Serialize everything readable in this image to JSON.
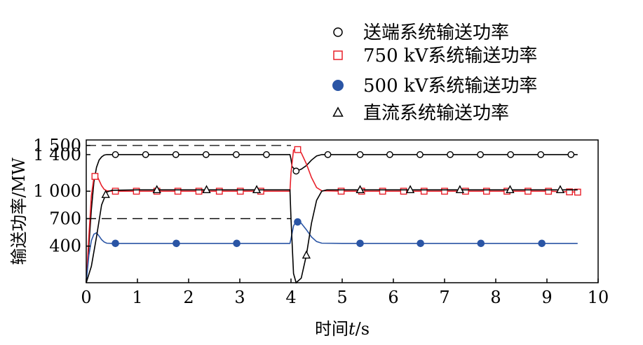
{
  "chart_data": {
    "type": "line",
    "title": "",
    "xlabel": "时间",
    "xlabel_italic": "t",
    "xlabel_unit": "/s",
    "ylabel": "输送功率/MW",
    "xlim": [
      0,
      10
    ],
    "ylim": [
      0,
      1560
    ],
    "x_ticks": [
      0,
      1,
      2,
      3,
      4,
      5,
      6,
      7,
      8,
      9,
      10
    ],
    "x_tick_labels": [
      "0",
      "1",
      "2",
      "3",
      "4",
      "5",
      "6",
      "7",
      "8",
      "9",
      "10"
    ],
    "y_ticks": [
      400,
      700,
      1000,
      1400,
      1500
    ],
    "y_tick_labels": [
      "400",
      "700",
      "1 000",
      "1 400",
      "1 500"
    ],
    "grid": false,
    "legend_position": "top-right",
    "reference_lines": [
      {
        "y": 1500,
        "x": [
          0,
          4.0
        ],
        "style": "dashed"
      },
      {
        "y": 700,
        "x": [
          0,
          4.0
        ],
        "style": "dashed"
      }
    ],
    "series": [
      {
        "name": "送端系统输送功率",
        "color": "#000000",
        "marker": "circle-open",
        "x": [
          0,
          0.05,
          0.1,
          0.15,
          0.2,
          0.25,
          0.3,
          0.35,
          0.4,
          1,
          2,
          3,
          3.98,
          4.0,
          4.02,
          4.1,
          4.2,
          4.3,
          4.4,
          4.5,
          4.6,
          5,
          6,
          7,
          8,
          9,
          9.6
        ],
        "values": [
          0,
          400,
          800,
          1100,
          1260,
          1340,
          1375,
          1395,
          1400,
          1400,
          1400,
          1400,
          1400,
          1350,
          1270,
          1220,
          1240,
          1280,
          1340,
          1385,
          1400,
          1400,
          1400,
          1400,
          1400,
          1400,
          1400
        ],
        "marker_x": [
          0.57,
          1.16,
          1.75,
          2.34,
          2.93,
          3.52,
          4.1,
          4.72,
          5.35,
          5.93,
          6.52,
          7.11,
          7.7,
          8.29,
          8.88,
          9.47
        ]
      },
      {
        "name": "750 kV系统输送功率",
        "color": "#e8202a",
        "marker": "square-open",
        "x": [
          0,
          0.05,
          0.1,
          0.15,
          0.2,
          0.25,
          0.3,
          0.35,
          0.4,
          0.5,
          1,
          2,
          3,
          3.98,
          4.0,
          4.05,
          4.1,
          4.2,
          4.3,
          4.4,
          4.5,
          4.6,
          5,
          6,
          7,
          8,
          9,
          9.6
        ],
        "values": [
          0,
          500,
          950,
          1150,
          1180,
          1120,
          1060,
          1020,
          1005,
          1000,
          1000,
          1000,
          1000,
          1000,
          1200,
          1450,
          1470,
          1420,
          1300,
          1150,
          1040,
          1005,
          1000,
          1000,
          1000,
          1000,
          1000,
          990
        ],
        "marker_x": [
          0.17,
          0.57,
          0.98,
          1.38,
          1.79,
          2.2,
          2.6,
          3.01,
          3.41,
          4.13,
          4.98,
          5.38,
          5.79,
          6.2,
          6.6,
          7.0,
          7.41,
          7.82,
          8.22,
          8.63,
          9.03,
          9.44,
          9.6
        ]
      },
      {
        "name": "500 kV系统输送功率",
        "color": "#2a55a5",
        "marker": "circle-filled",
        "x": [
          0,
          0.05,
          0.1,
          0.15,
          0.2,
          0.25,
          0.3,
          0.35,
          0.4,
          0.5,
          1,
          2,
          3,
          3.98,
          4.0,
          4.05,
          4.1,
          4.2,
          4.3,
          4.4,
          4.5,
          4.6,
          5,
          6,
          7,
          8,
          9,
          9.6
        ],
        "values": [
          0,
          300,
          460,
          530,
          545,
          510,
          470,
          445,
          432,
          430,
          430,
          430,
          430,
          430,
          480,
          620,
          670,
          650,
          580,
          500,
          450,
          432,
          430,
          430,
          430,
          430,
          430,
          430
        ],
        "marker_x": [
          0.57,
          1.76,
          2.94,
          4.13,
          5.35,
          6.53,
          7.71,
          8.9
        ]
      },
      {
        "name": "直流系统输送功率",
        "color": "#000000",
        "marker": "triangle-open",
        "x": [
          0,
          0.1,
          0.2,
          0.3,
          0.4,
          0.5,
          1,
          2,
          3,
          3.98,
          4.0,
          4.05,
          4.1,
          4.2,
          4.3,
          4.4,
          4.5,
          4.6,
          4.7,
          5,
          6,
          7,
          8,
          9,
          9.6
        ],
        "values": [
          0,
          180,
          500,
          850,
          990,
          1010,
          1015,
          1015,
          1015,
          1015,
          700,
          100,
          0,
          50,
          300,
          650,
          900,
          1000,
          1015,
          1015,
          1015,
          1015,
          1015,
          1015,
          1015
        ],
        "marker_x": [
          0.38,
          1.38,
          2.35,
          3.33,
          4.3,
          5.35,
          6.33,
          7.3,
          8.28,
          9.26
        ]
      }
    ]
  }
}
